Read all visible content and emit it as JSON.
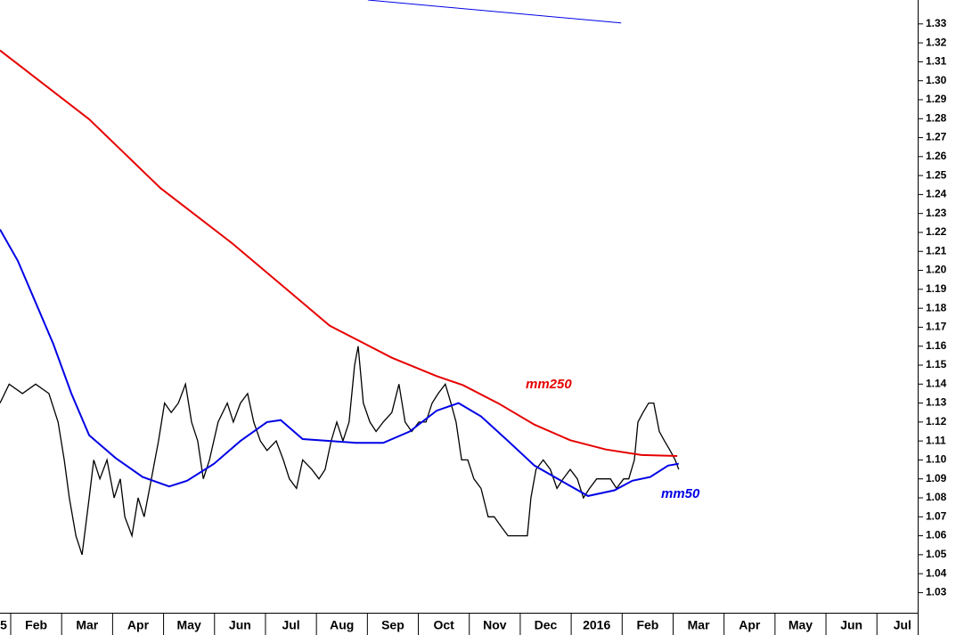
{
  "chart_data": {
    "type": "line",
    "xlim": [
      -0.21,
      17.8
    ],
    "ylim": [
      1.0194,
      1.3426
    ],
    "xticks": [
      {
        "value": -0.5,
        "label": "5"
      },
      {
        "value": 0.5,
        "label": "Feb"
      },
      {
        "value": 1.5,
        "label": "Mar"
      },
      {
        "value": 2.5,
        "label": "Apr"
      },
      {
        "value": 3.5,
        "label": "May"
      },
      {
        "value": 4.5,
        "label": "Jun"
      },
      {
        "value": 5.5,
        "label": "Jul"
      },
      {
        "value": 6.5,
        "label": "Aug"
      },
      {
        "value": 7.5,
        "label": "Sep"
      },
      {
        "value": 8.5,
        "label": "Oct"
      },
      {
        "value": 9.5,
        "label": "Nov"
      },
      {
        "value": 10.5,
        "label": "Dec"
      },
      {
        "value": 11.5,
        "label": "2016"
      },
      {
        "value": 12.5,
        "label": "Feb"
      },
      {
        "value": 13.5,
        "label": "Mar"
      },
      {
        "value": 14.5,
        "label": "Apr"
      },
      {
        "value": 15.5,
        "label": "May"
      },
      {
        "value": 16.5,
        "label": "Jun"
      },
      {
        "value": 17.5,
        "label": "Jul"
      }
    ],
    "yticks": [
      1.03,
      1.04,
      1.05,
      1.06,
      1.07,
      1.08,
      1.09,
      {
        "value": 1.1,
        "label": "1.10"
      },
      1.11,
      1.12,
      1.13,
      1.14,
      1.15,
      1.16,
      1.17,
      1.18,
      1.19,
      {
        "value": 1.2,
        "label": "1.20"
      },
      1.21,
      1.22,
      1.23,
      1.24,
      1.25,
      1.26,
      1.27,
      1.28,
      1.29,
      {
        "value": 1.3,
        "label": "1.30"
      },
      1.31,
      1.32,
      1.33
    ],
    "price": {
      "color": "#000000",
      "x": [
        -0.21,
        -0.03,
        0.23,
        0.49,
        0.75,
        0.93,
        1.05,
        1.15,
        1.28,
        1.4,
        1.54,
        1.63,
        1.75,
        1.89,
        2.03,
        2.15,
        2.24,
        2.38,
        2.5,
        2.62,
        2.76,
        2.9,
        3.02,
        3.15,
        3.29,
        3.43,
        3.55,
        3.67,
        3.78,
        3.9,
        4.07,
        4.25,
        4.37,
        4.51,
        4.65,
        4.77,
        4.9,
        5.03,
        5.21,
        5.35,
        5.47,
        5.61,
        5.73,
        5.91,
        6.05,
        6.17,
        6.29,
        6.4,
        6.52,
        6.64,
        6.75,
        6.82,
        6.92,
        7.05,
        7.17,
        7.31,
        7.48,
        7.62,
        7.74,
        7.87,
        8.01,
        8.15,
        8.27,
        8.39,
        8.53,
        8.64,
        8.74,
        8.85,
        8.97,
        9.09,
        9.23,
        9.37,
        9.49,
        9.62,
        9.76,
        9.9,
        10.02,
        10.14,
        10.21,
        10.31,
        10.45,
        10.59,
        10.72,
        10.84,
        10.98,
        11.12,
        11.24,
        11.36,
        11.5,
        11.64,
        11.77,
        11.89,
        12.03,
        12.13,
        12.24,
        12.31,
        12.41,
        12.52,
        12.62,
        12.73,
        12.83,
        12.94,
        13.04,
        13.11
      ],
      "values": [
        1.13,
        1.14,
        1.135,
        1.14,
        1.135,
        1.12,
        1.1,
        1.08,
        1.06,
        1.05,
        1.08,
        1.1,
        1.09,
        1.1,
        1.08,
        1.09,
        1.07,
        1.06,
        1.08,
        1.07,
        1.09,
        1.11,
        1.13,
        1.125,
        1.13,
        1.14,
        1.12,
        1.11,
        1.09,
        1.1,
        1.12,
        1.13,
        1.12,
        1.13,
        1.135,
        1.12,
        1.11,
        1.105,
        1.11,
        1.1,
        1.09,
        1.085,
        1.1,
        1.095,
        1.09,
        1.095,
        1.11,
        1.12,
        1.11,
        1.12,
        1.15,
        1.16,
        1.13,
        1.12,
        1.115,
        1.12,
        1.125,
        1.14,
        1.12,
        1.115,
        1.12,
        1.12,
        1.13,
        1.135,
        1.14,
        1.13,
        1.12,
        1.1,
        1.1,
        1.09,
        1.085,
        1.07,
        1.07,
        1.065,
        1.06,
        1.06,
        1.06,
        1.06,
        1.08,
        1.095,
        1.1,
        1.095,
        1.085,
        1.09,
        1.095,
        1.09,
        1.08,
        1.085,
        1.09,
        1.09,
        1.09,
        1.085,
        1.09,
        1.09,
        1.1,
        1.12,
        1.125,
        1.13,
        1.13,
        1.115,
        1.11,
        1.105,
        1.1,
        1.095
      ]
    },
    "series": [
      {
        "name": "mm250",
        "color": "#e60000",
        "x": [
          -0.21,
          1.54,
          2.94,
          4.34,
          5.73,
          6.26,
          6.78,
          7.48,
          8.36,
          8.88,
          9.58,
          10.28,
          10.98,
          11.68,
          12.38,
          13.08
        ],
        "values": [
          1.316,
          1.2797,
          1.2434,
          1.2144,
          1.1829,
          1.1708,
          1.1636,
          1.1539,
          1.1442,
          1.1394,
          1.1297,
          1.1186,
          1.1104,
          1.1055,
          1.1026,
          1.1021
        ]
      },
      {
        "name": "mm50",
        "color": "#0000e6",
        "x": [
          -0.21,
          0.14,
          0.49,
          0.84,
          1.19,
          1.54,
          2.06,
          2.59,
          3.11,
          3.46,
          3.99,
          4.51,
          5.03,
          5.3,
          5.73,
          6.26,
          6.78,
          7.31,
          7.83,
          8.36,
          8.79,
          9.23,
          9.76,
          10.28,
          10.8,
          11.33,
          11.85,
          12.2,
          12.55,
          12.9,
          13.11
        ],
        "values": [
          1.2216,
          1.205,
          1.183,
          1.161,
          1.135,
          1.113,
          1.101,
          1.091,
          1.086,
          1.089,
          1.098,
          1.11,
          1.12,
          1.121,
          1.111,
          1.11,
          1.109,
          1.109,
          1.115,
          1.126,
          1.13,
          1.123,
          1.11,
          1.097,
          1.089,
          1.081,
          1.084,
          1.089,
          1.091,
          1.097,
          1.098
        ]
      }
    ],
    "trendline": {
      "color": "#0000e6",
      "x": [
        7.01,
        11.98
      ],
      "values": [
        1.3426,
        1.3305
      ]
    }
  }
}
